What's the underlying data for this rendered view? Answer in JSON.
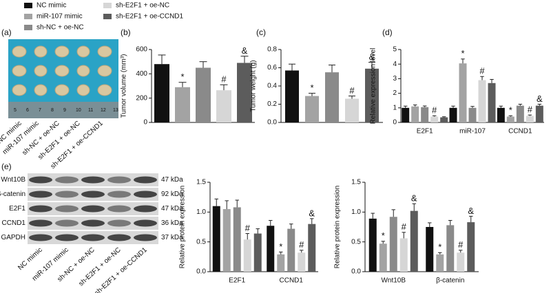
{
  "legend": [
    {
      "name": "NC mimic",
      "color": "#111111"
    },
    {
      "name": "miR-107 mimic",
      "color": "#a3a3a3"
    },
    {
      "name": "sh-NC + oe-NC",
      "color": "#8a8a8a"
    },
    {
      "name": "sh-E2F1 + oe-NC",
      "color": "#d6d6d6"
    },
    {
      "name": "sh-E2F1 + oe-CCND1",
      "color": "#5c5c5c"
    }
  ],
  "photo": {
    "panel": "(a)",
    "ruler": [
      "5",
      "6",
      "7",
      "8",
      "9",
      "10",
      "11",
      "12",
      "13"
    ]
  },
  "blot": {
    "panel": "(e)",
    "bands": [
      {
        "protein": "Wnt10B",
        "size": "47 kDa"
      },
      {
        "protein": "β-catenin",
        "size": "92 kDa"
      },
      {
        "protein": "E2F1",
        "size": "47 kDa"
      },
      {
        "protein": "CCND1",
        "size": "36 kDa"
      },
      {
        "protein": "GAPDH",
        "size": "37 kDa"
      }
    ]
  },
  "chart_data": [
    {
      "type": "bar",
      "panel": "(b)",
      "ylabel": "Tumor volume (mm³)",
      "ylim": [
        0,
        600
      ],
      "yticks": [
        0,
        200,
        400,
        600
      ],
      "categories": [
        null
      ],
      "series": [
        {
          "values": [
            480
          ],
          "errors": [
            75
          ],
          "annotations": [
            null
          ]
        },
        {
          "values": [
            290
          ],
          "errors": [
            40
          ],
          "annotations": [
            "*"
          ]
        },
        {
          "values": [
            450
          ],
          "errors": [
            50
          ],
          "annotations": [
            null
          ]
        },
        {
          "values": [
            265
          ],
          "errors": [
            45
          ],
          "annotations": [
            "#"
          ]
        },
        {
          "values": [
            490
          ],
          "errors": [
            55
          ],
          "annotations": [
            "&"
          ]
        }
      ]
    },
    {
      "type": "bar",
      "panel": "(c)",
      "ylabel": "Tumor weight (g)",
      "ylim": [
        0,
        0.8
      ],
      "yticks": [
        {
          "value": 0,
          "label": "0.0"
        },
        0.2,
        0.4,
        0.6,
        0.8
      ],
      "categories": [
        null
      ],
      "series": [
        {
          "values": [
            0.57
          ],
          "errors": [
            0.07
          ],
          "annotations": [
            null
          ]
        },
        {
          "values": [
            0.29
          ],
          "errors": [
            0.03
          ],
          "annotations": [
            "*"
          ]
        },
        {
          "values": [
            0.55
          ],
          "errors": [
            0.08
          ],
          "annotations": [
            null
          ]
        },
        {
          "values": [
            0.26
          ],
          "errors": [
            0.03
          ],
          "annotations": [
            "#"
          ]
        },
        {
          "values": [
            0.59
          ],
          "errors": [
            0.07
          ],
          "annotations": [
            "&"
          ]
        }
      ]
    },
    {
      "type": "bar",
      "panel": "(d)",
      "ylabel": "Relative expression level",
      "ylim": [
        0,
        5
      ],
      "yticks": [
        0,
        1,
        2,
        3,
        4,
        5
      ],
      "categories": [
        "E2F1",
        "miR-107",
        "CCND1"
      ],
      "series": [
        {
          "values": [
            1.0,
            1.0,
            1.0
          ],
          "errors": [
            0.12,
            0.12,
            0.12
          ],
          "annotations": [
            null,
            null,
            null
          ]
        },
        {
          "values": [
            1.1,
            4.05,
            0.4
          ],
          "errors": [
            0.1,
            0.3,
            0.06
          ],
          "annotations": [
            null,
            "*",
            "*"
          ]
        },
        {
          "values": [
            1.05,
            1.0,
            1.15
          ],
          "errors": [
            0.08,
            0.1,
            0.1
          ],
          "annotations": [
            null,
            null,
            null
          ]
        },
        {
          "values": [
            0.4,
            2.9,
            0.45
          ],
          "errors": [
            0.06,
            0.25,
            0.06
          ],
          "annotations": [
            "#",
            "#",
            "#"
          ]
        },
        {
          "values": [
            0.35,
            2.7,
            1.15
          ],
          "errors": [
            0.04,
            0.25,
            0.1
          ],
          "annotations": [
            null,
            null,
            "&"
          ]
        }
      ]
    },
    {
      "type": "bar",
      "ylabel": "Relative  protein expression",
      "ylim": [
        0,
        1.5
      ],
      "yticks": [
        {
          "value": 0,
          "label": "0.0"
        },
        0.5,
        {
          "value": 1,
          "label": "1.0"
        },
        1.5
      ],
      "categories": [
        "E2F1",
        "CCND1"
      ],
      "series": [
        {
          "values": [
            1.1,
            0.77
          ],
          "errors": [
            0.12,
            0.09
          ],
          "annotations": [
            null,
            null
          ]
        },
        {
          "values": [
            1.05,
            0.29
          ],
          "errors": [
            0.14,
            0.04
          ],
          "annotations": [
            null,
            "*"
          ]
        },
        {
          "values": [
            1.08,
            0.72
          ],
          "errors": [
            0.12,
            0.08
          ],
          "annotations": [
            null,
            null
          ]
        },
        {
          "values": [
            0.54,
            0.32
          ],
          "errors": [
            0.1,
            0.04
          ],
          "annotations": [
            "#",
            "#"
          ]
        },
        {
          "values": [
            0.64,
            0.8
          ],
          "errors": [
            0.08,
            0.09
          ],
          "annotations": [
            null,
            "&"
          ]
        }
      ]
    },
    {
      "type": "bar",
      "ylabel": "Relative  protein expression",
      "ylim": [
        0,
        1.5
      ],
      "yticks": [
        {
          "value": 0,
          "label": "0.0"
        },
        0.5,
        {
          "value": 1,
          "label": "1.0"
        },
        1.5
      ],
      "categories": [
        "Wnt10B",
        "β-catenin"
      ],
      "series": [
        {
          "values": [
            0.89,
            0.75
          ],
          "errors": [
            0.09,
            0.07
          ],
          "annotations": [
            null,
            null
          ]
        },
        {
          "values": [
            0.47,
            0.29
          ],
          "errors": [
            0.04,
            0.03
          ],
          "annotations": [
            "*",
            "*"
          ]
        },
        {
          "values": [
            0.92,
            0.78
          ],
          "errors": [
            0.12,
            0.08
          ],
          "annotations": [
            null,
            null
          ]
        },
        {
          "values": [
            0.56,
            0.32
          ],
          "errors": [
            0.1,
            0.04
          ],
          "annotations": [
            "#",
            "#"
          ]
        },
        {
          "values": [
            1.02,
            0.83
          ],
          "errors": [
            0.12,
            0.1
          ],
          "annotations": [
            "&",
            "&"
          ]
        }
      ]
    }
  ]
}
